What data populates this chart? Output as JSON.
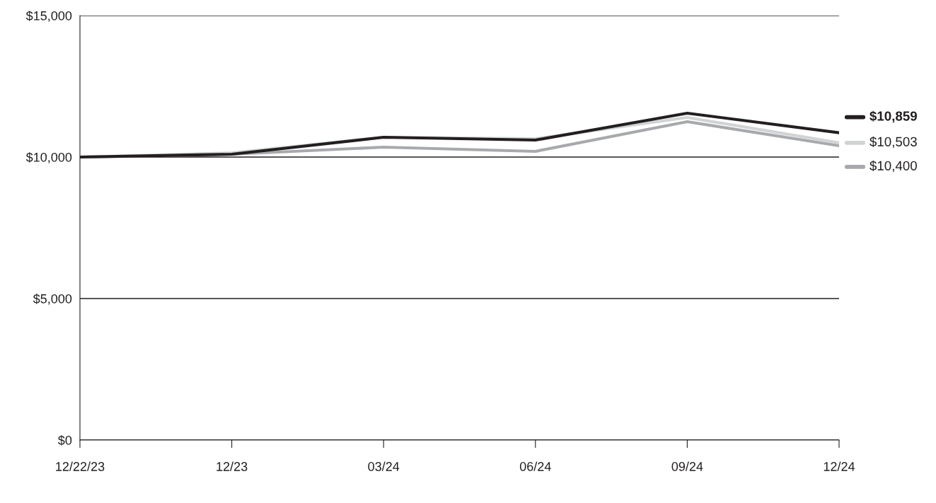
{
  "chart_data": {
    "type": "line",
    "categories": [
      "12/22/23",
      "12/23",
      "03/24",
      "06/24",
      "09/24",
      "12/24"
    ],
    "series": [
      {
        "color": "#231f20",
        "values": [
          10000,
          10100,
          10700,
          10600,
          11550,
          10859
        ]
      },
      {
        "color": "#d1d3d4",
        "values": [
          10000,
          10150,
          10700,
          10650,
          11400,
          10503
        ]
      },
      {
        "color": "#a7a9ac",
        "values": [
          10000,
          10100,
          10350,
          10200,
          11250,
          10400
        ]
      }
    ],
    "ylim": [
      0,
      15000
    ],
    "yticks": [
      {
        "value": 0,
        "label": "$0"
      },
      {
        "value": 5000,
        "label": "$5,000"
      },
      {
        "value": 10000,
        "label": "$10,000"
      },
      {
        "value": 15000,
        "label": "$15,000"
      }
    ],
    "grid": "y",
    "marker": "none",
    "line_style": "solid",
    "annotations": [
      {
        "text": "$10,859",
        "x": "12/24",
        "y": 10859
      },
      {
        "text": "$10,503",
        "x": "12/24",
        "y": 10503
      },
      {
        "text": "$10,400",
        "x": "12/24",
        "y": 10400
      }
    ]
  }
}
